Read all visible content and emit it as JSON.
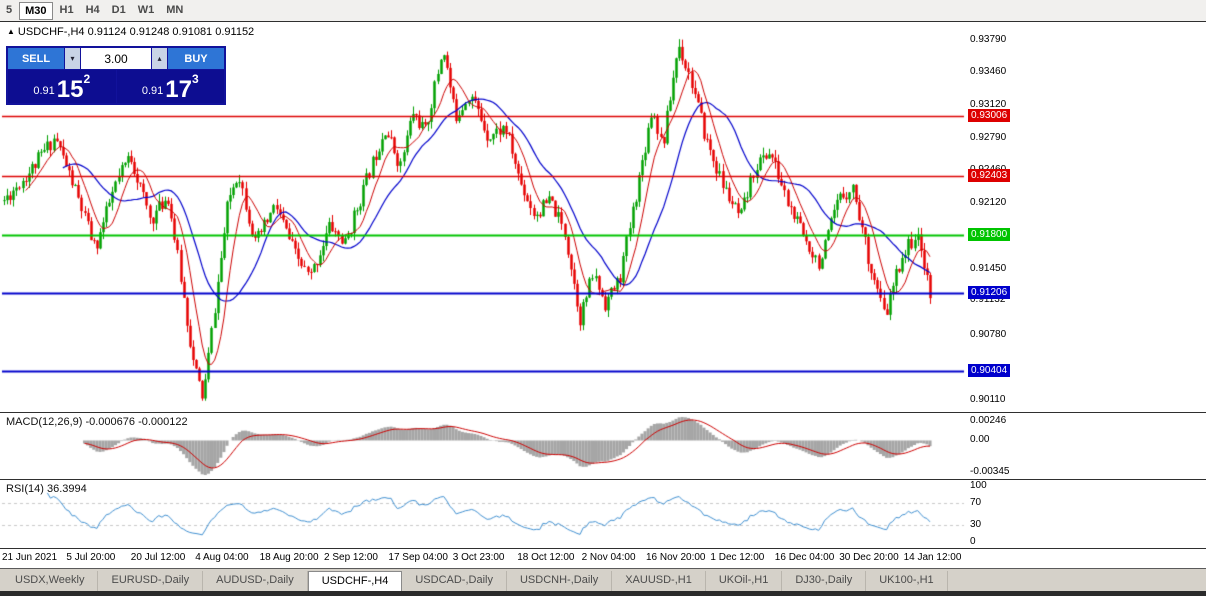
{
  "toolbar": {
    "periods": [
      "5",
      "M30",
      "H1",
      "H4",
      "D1",
      "W1",
      "MN"
    ],
    "active_index": 1
  },
  "chart": {
    "header": {
      "arrow": "▲",
      "text": "USDCHF-,H4 0.91124 0.91248 0.91081 0.91152"
    },
    "price_max": 0.9397,
    "price_min": 0.8999,
    "axis_ticks": [
      {
        "label": "0.93790",
        "price": 0.9379
      },
      {
        "label": "0.93460",
        "price": 0.9346
      },
      {
        "label": "0.93120",
        "price": 0.9312
      },
      {
        "label": "0.92790",
        "price": 0.9279
      },
      {
        "label": "0.92460",
        "price": 0.9246
      },
      {
        "label": "0.92120",
        "price": 0.9212
      },
      {
        "label": "0.91450",
        "price": 0.9145
      },
      {
        "label": "0.91132",
        "price": 0.91132
      },
      {
        "label": "0.90780",
        "price": 0.9078
      },
      {
        "label": "0.90110",
        "price": 0.9011
      }
    ],
    "level_lines": [
      {
        "label": "0.93006",
        "price": 0.93006,
        "color": "#dd0000",
        "width": 1.5
      },
      {
        "label": "0.92403",
        "price": 0.92403,
        "color": "#dd0000",
        "width": 1.5
      },
      {
        "label": "0.91800",
        "price": 0.918,
        "color": "#00c400",
        "width": 2
      },
      {
        "label": "0.91206",
        "price": 0.91206,
        "color": "#0000cc",
        "width": 2
      },
      {
        "label": "0.90404",
        "price": 0.90404,
        "color": "#0000cc",
        "width": 2
      }
    ],
    "trade_panel": {
      "sell_label": "SELL",
      "buy_label": "BUY",
      "volume": "3.00",
      "spin_down_icon": "▾",
      "spin_up_icon": "▴",
      "sell_price": {
        "small": "0.91",
        "big": "15",
        "sup": "2"
      },
      "buy_price": {
        "small": "0.91",
        "big": "17",
        "sup": "3"
      }
    }
  },
  "macd": {
    "label": "MACD(12,26,9) -0.000676 -0.000122",
    "axis_max_label": "0.00246",
    "axis_zero_label": "0.00",
    "axis_min_label": "-0.00345",
    "max": 0.00246,
    "min": -0.00345,
    "hist_color": "#a6a6a6",
    "signal_color": "#cc0000"
  },
  "rsi": {
    "label": "RSI(14) 36.3994",
    "axis_labels": [
      {
        "label": "100",
        "value": 100
      },
      {
        "label": "70",
        "value": 70
      },
      {
        "label": "30",
        "value": 30
      },
      {
        "label": "0",
        "value": 0
      }
    ],
    "levels": [
      70,
      30
    ],
    "line_color": "#3f8fd0",
    "level_color": "#c8c8c8"
  },
  "time_axis": [
    "21 Jun 2021",
    "5 Jul 20:00",
    "20 Jul 12:00",
    "4 Aug 04:00",
    "18 Aug 20:00",
    "2 Sep 12:00",
    "17 Sep 04:00",
    "3 Oct 23:00",
    "18 Oct 12:00",
    "2 Nov 04:00",
    "16 Nov 20:00",
    "1 Dec 12:00",
    "16 Dec 04:00",
    "30 Dec 20:00",
    "14 Jan 12:00"
  ],
  "tabs": {
    "items": [
      "USDX,Weekly",
      "EURUSD-,Daily",
      "AUDUSD-,Daily",
      "USDCHF-,H4",
      "USDCAD-,Daily",
      "USDCNH-,Daily",
      "XAUUSD-,H1",
      "UKOil-,H1",
      "DJ30-,Daily",
      "UK100-,H1"
    ],
    "active_index": 3
  },
  "chart_data": {
    "type": "candlestick",
    "symbol": "USDCHF-",
    "timeframe": "H4",
    "ohlc": {
      "open": 0.91124,
      "high": 0.91248,
      "low": 0.91081,
      "close": 0.91152
    },
    "macd_values": {
      "main": -0.000676,
      "signal": -0.000122
    },
    "rsi_value": 36.3994,
    "levels": [
      0.93006,
      0.92403,
      0.918,
      0.91206,
      0.90404
    ],
    "y_range": [
      0.9011,
      0.9379
    ],
    "candle_count": 300,
    "noise": 0.0008,
    "seed": 11,
    "up_color": "#00a000",
    "down_color": "#e60000",
    "ma_fast": {
      "period": 8,
      "color": "#cc0000"
    },
    "ma_slow": {
      "period": 20,
      "color": "#0000cc"
    },
    "price_path_anchors": [
      [
        0.0,
        0.9215
      ],
      [
        0.028,
        0.9245
      ],
      [
        0.055,
        0.928
      ],
      [
        0.077,
        0.9225
      ],
      [
        0.098,
        0.9165
      ],
      [
        0.12,
        0.923
      ],
      [
        0.136,
        0.9262
      ],
      [
        0.158,
        0.9195
      ],
      [
        0.177,
        0.922
      ],
      [
        0.19,
        0.914
      ],
      [
        0.204,
        0.905
      ],
      [
        0.215,
        0.9012
      ],
      [
        0.226,
        0.9095
      ],
      [
        0.242,
        0.9215
      ],
      [
        0.253,
        0.9245
      ],
      [
        0.271,
        0.917
      ],
      [
        0.293,
        0.921
      ],
      [
        0.314,
        0.916
      ],
      [
        0.33,
        0.9135
      ],
      [
        0.352,
        0.919
      ],
      [
        0.368,
        0.917
      ],
      [
        0.384,
        0.9215
      ],
      [
        0.411,
        0.929
      ],
      [
        0.428,
        0.925
      ],
      [
        0.441,
        0.9305
      ],
      [
        0.455,
        0.9285
      ],
      [
        0.474,
        0.9372
      ],
      [
        0.487,
        0.93
      ],
      [
        0.503,
        0.9325
      ],
      [
        0.523,
        0.928
      ],
      [
        0.541,
        0.929
      ],
      [
        0.557,
        0.9235
      ],
      [
        0.573,
        0.92
      ],
      [
        0.59,
        0.9215
      ],
      [
        0.606,
        0.918
      ],
      [
        0.622,
        0.9095
      ],
      [
        0.636,
        0.914
      ],
      [
        0.649,
        0.911
      ],
      [
        0.665,
        0.9135
      ],
      [
        0.685,
        0.9235
      ],
      [
        0.7,
        0.931
      ],
      [
        0.711,
        0.927
      ],
      [
        0.728,
        0.9375
      ],
      [
        0.741,
        0.934
      ],
      [
        0.757,
        0.928
      ],
      [
        0.776,
        0.923
      ],
      [
        0.795,
        0.9195
      ],
      [
        0.811,
        0.925
      ],
      [
        0.827,
        0.9265
      ],
      [
        0.847,
        0.921
      ],
      [
        0.865,
        0.9175
      ],
      [
        0.881,
        0.915
      ],
      [
        0.901,
        0.9215
      ],
      [
        0.916,
        0.923
      ],
      [
        0.935,
        0.915
      ],
      [
        0.951,
        0.9095
      ],
      [
        0.968,
        0.9155
      ],
      [
        0.984,
        0.918
      ],
      [
        0.996,
        0.9145
      ],
      [
        1.0,
        0.9115
      ]
    ]
  }
}
